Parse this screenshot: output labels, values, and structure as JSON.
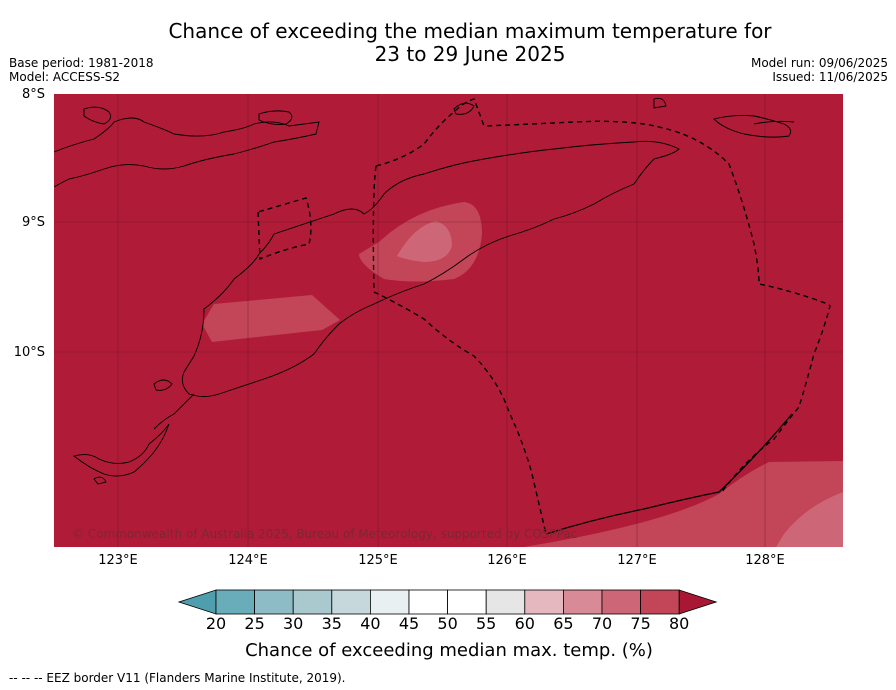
{
  "title": {
    "line1": "Chance of exceeding the median maximum temperature for",
    "line2": "23 to 29 June 2025"
  },
  "meta_left": {
    "base_period": "Base period: 1981-2018",
    "model": "Model: ACCESS-S2"
  },
  "meta_right": {
    "model_run": "Model run: 09/06/2025",
    "issued": "Issued: 11/06/2025"
  },
  "map": {
    "lat_labels": [
      "8°S",
      "9°S",
      "10°S"
    ],
    "lon_labels": [
      "123°E",
      "124°E",
      "125°E",
      "126°E",
      "127°E",
      "128°E"
    ],
    "copyright": "© Commonwealth of Australia 2025, Bureau of Meteorology, supported by COSPPac",
    "background_category": "80",
    "colors": {
      "c80": "#b01c38",
      "c75": "#c24657",
      "c70": "#cd6676",
      "coast": "#000000"
    }
  },
  "colorbar": {
    "ticks": [
      "20",
      "25",
      "30",
      "35",
      "40",
      "45",
      "50",
      "55",
      "60",
      "65",
      "70",
      "75",
      "80"
    ],
    "colors": [
      "#4e9eae",
      "#69adbb",
      "#8ebcc6",
      "#a9c9cf",
      "#c6d8db",
      "#e8f0f2",
      "#ffffff",
      "#ffffff",
      "#e6e6e6",
      "#e5b8c0",
      "#d88b96",
      "#cd6676",
      "#c24657",
      "#a81834"
    ],
    "label": "Chance of exceeding median max. temp. (%)"
  },
  "footer": "--  --  -- EEZ border V11 (Flanders Marine Institute, 2019)."
}
